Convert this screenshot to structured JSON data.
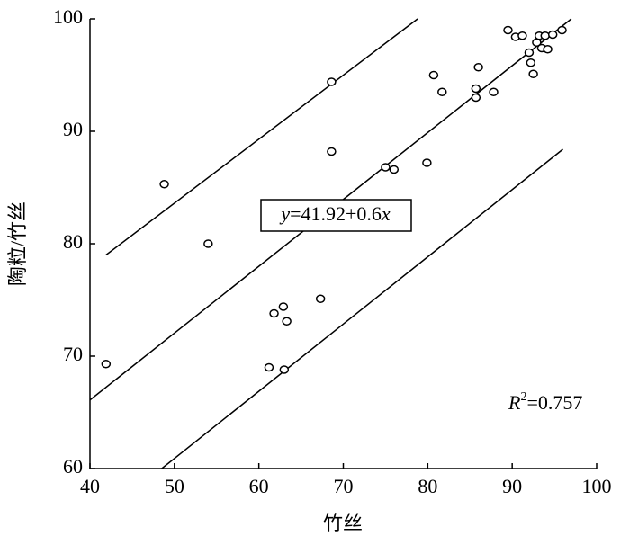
{
  "chart_data": {
    "type": "scatter",
    "xlabel": "竹丝",
    "ylabel": "陶粒/竹丝",
    "xlim": [
      40,
      100
    ],
    "ylim": [
      60,
      100
    ],
    "xticks": [
      40,
      50,
      60,
      70,
      80,
      90,
      100
    ],
    "yticks": [
      60,
      70,
      80,
      90,
      100
    ],
    "color": "#000000",
    "x": [
      41.9,
      48.8,
      54.0,
      61.2,
      61.8,
      62.9,
      63.3,
      63.0,
      67.3,
      68.6,
      68.6,
      75.0,
      76.0,
      79.9,
      80.7,
      81.7,
      85.7,
      85.7,
      86.0,
      87.8,
      89.5,
      90.4,
      91.2,
      92.0,
      92.2,
      92.5,
      92.9,
      93.2,
      93.5,
      93.9,
      94.2,
      94.8,
      95.9
    ],
    "values": [
      69.3,
      85.3,
      80.0,
      69.0,
      73.8,
      74.4,
      73.1,
      68.8,
      75.1,
      94.4,
      88.2,
      86.8,
      86.6,
      87.2,
      95.0,
      93.5,
      93.8,
      93.0,
      95.7,
      93.5,
      99.0,
      98.4,
      98.5,
      97.0,
      96.1,
      95.1,
      97.9,
      98.5,
      97.4,
      98.5,
      97.3,
      98.6,
      99.0
    ],
    "lines": [
      {
        "x": [
          41.9,
          78.8
        ],
        "values": [
          79.0,
          100
        ]
      },
      {
        "x": [
          40,
          97.0
        ],
        "values": [
          66.1,
          100
        ]
      },
      {
        "x": [
          48.5,
          96.0
        ],
        "values": [
          60,
          88.4
        ]
      }
    ],
    "equation": [
      "y",
      "=41.92+0.6",
      "x"
    ],
    "r_squared": [
      "R",
      "2",
      "=0.757"
    ]
  }
}
